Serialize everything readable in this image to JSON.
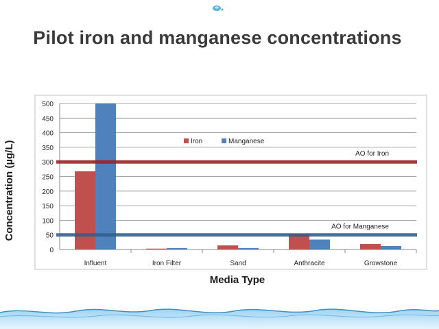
{
  "slide": {
    "title": "Pilot iron and manganese concentrations"
  },
  "chart_data": {
    "type": "bar",
    "title": "",
    "xlabel": "Media Type",
    "ylabel": "Concentration (µg/L)",
    "categories": [
      "Influent",
      "Iron Filter",
      "Sand",
      "Anthracite",
      "Growstone"
    ],
    "series": [
      {
        "name": "Iron",
        "color": "#c0504d",
        "values": [
          268,
          3,
          14,
          53,
          19
        ]
      },
      {
        "name": "Manganese",
        "color": "#4f81bd",
        "values": [
          500,
          5,
          5,
          34,
          12
        ]
      }
    ],
    "ylim": [
      0,
      500
    ],
    "yticks": [
      0,
      50,
      100,
      150,
      200,
      250,
      300,
      350,
      400,
      450,
      500
    ],
    "grid": true,
    "legend_position": "top-center",
    "reference_lines": [
      {
        "label": "AO for Iron",
        "value": 300,
        "color": "#9b1c1c"
      },
      {
        "label": "AO for Manganese",
        "value": 50,
        "color": "#2f5d8a"
      }
    ]
  }
}
